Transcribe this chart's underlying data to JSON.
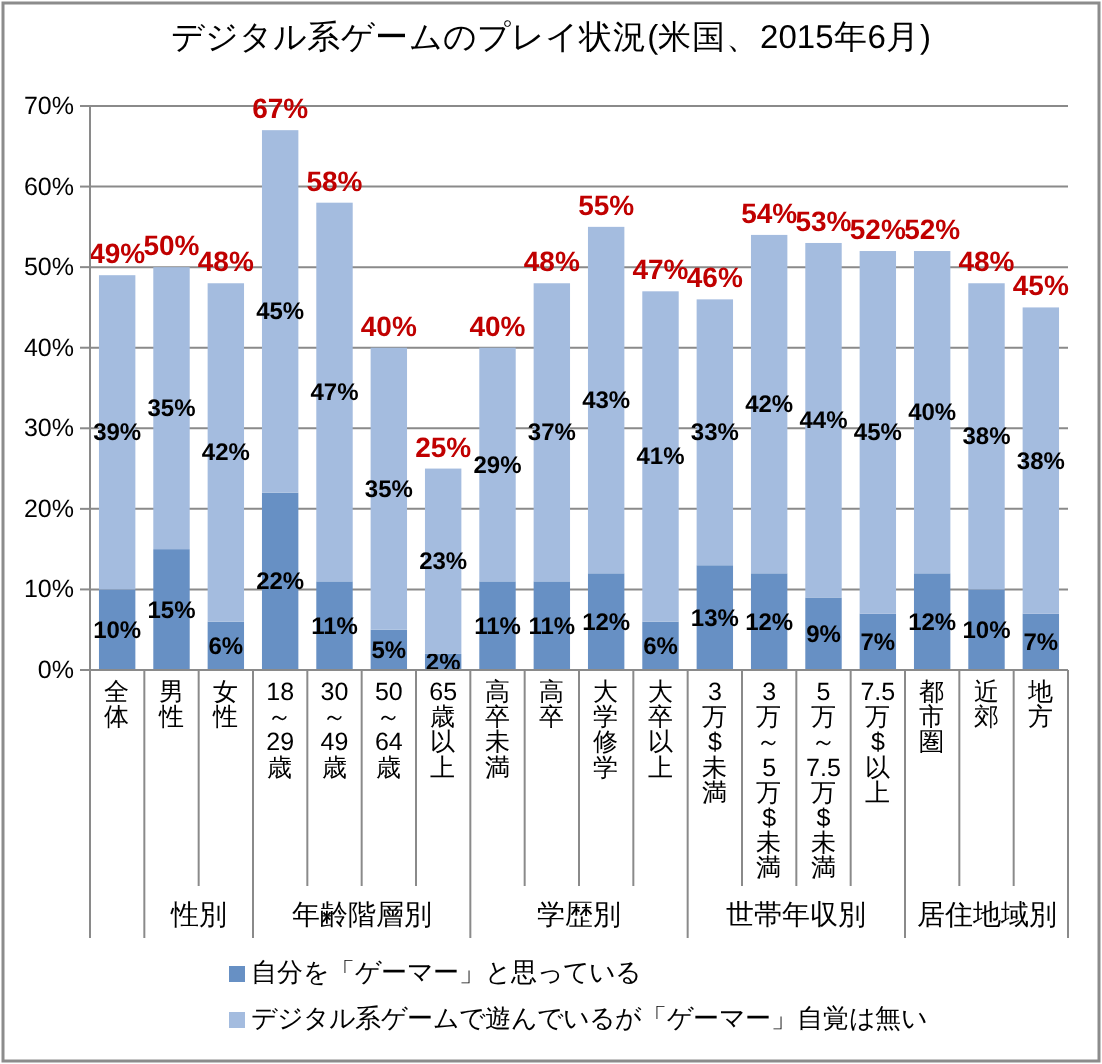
{
  "chart_data": {
    "type": "bar",
    "title": "デジタル系ゲームのプレイ状況(米国、2015年6月)",
    "categories": [
      "全体",
      "男性",
      "女性",
      "18～29歳",
      "30～49歳",
      "50～64歳",
      "65歳以上",
      "高卒未満",
      "高卒",
      "大学修学",
      "大卒以上",
      "3万$未満",
      "3万～5万$未満",
      "5万～7.5万$未満",
      "7.5万$以上",
      "都市圏",
      "近郊",
      "地方"
    ],
    "series": [
      {
        "name": "自分を「ゲーマー」と思っている",
        "color": "#6790c4",
        "values": [
          10,
          15,
          6,
          22,
          11,
          5,
          2,
          11,
          11,
          12,
          6,
          13,
          12,
          9,
          7,
          12,
          10,
          7
        ],
        "value_labels": [
          "10%",
          "15%",
          "6%",
          "22%",
          "11%",
          "5%",
          "2%",
          "11%",
          "11%",
          "12%",
          "6%",
          "13%",
          "12%",
          "9%",
          "7%",
          "12%",
          "10%",
          "7%"
        ]
      },
      {
        "name": "デジタル系ゲームで遊んでいるが「ゲーマー」自覚は無い",
        "color": "#a4bcdf",
        "values": [
          39,
          35,
          42,
          45,
          47,
          35,
          23,
          29,
          37,
          43,
          41,
          33,
          42,
          44,
          45,
          40,
          38,
          38
        ],
        "value_labels": [
          "39%",
          "35%",
          "42%",
          "45%",
          "47%",
          "35%",
          "23%",
          "29%",
          "37%",
          "43%",
          "41%",
          "33%",
          "42%",
          "44%",
          "45%",
          "40%",
          "38%",
          "38%"
        ]
      }
    ],
    "stacked": true,
    "totals": [
      "49%",
      "50%",
      "48%",
      "67%",
      "58%",
      "40%",
      "25%",
      "40%",
      "48%",
      "55%",
      "47%",
      "46%",
      "54%",
      "53%",
      "52%",
      "52%",
      "48%",
      "45%"
    ],
    "ylim": [
      0,
      70
    ],
    "yticks": [
      {
        "value": 0,
        "label": "0%"
      },
      {
        "value": 10,
        "label": "10%"
      },
      {
        "value": 20,
        "label": "20%"
      },
      {
        "value": 30,
        "label": "30%"
      },
      {
        "value": 40,
        "label": "40%"
      },
      {
        "value": 50,
        "label": "50%"
      },
      {
        "value": 60,
        "label": "60%"
      },
      {
        "value": 70,
        "label": "70%"
      }
    ],
    "grid": "y",
    "legend": "bottom",
    "annotations": [
      "性別",
      "年齢階層別",
      "学歴別",
      "世帯年収別",
      "居住地域別"
    ]
  }
}
